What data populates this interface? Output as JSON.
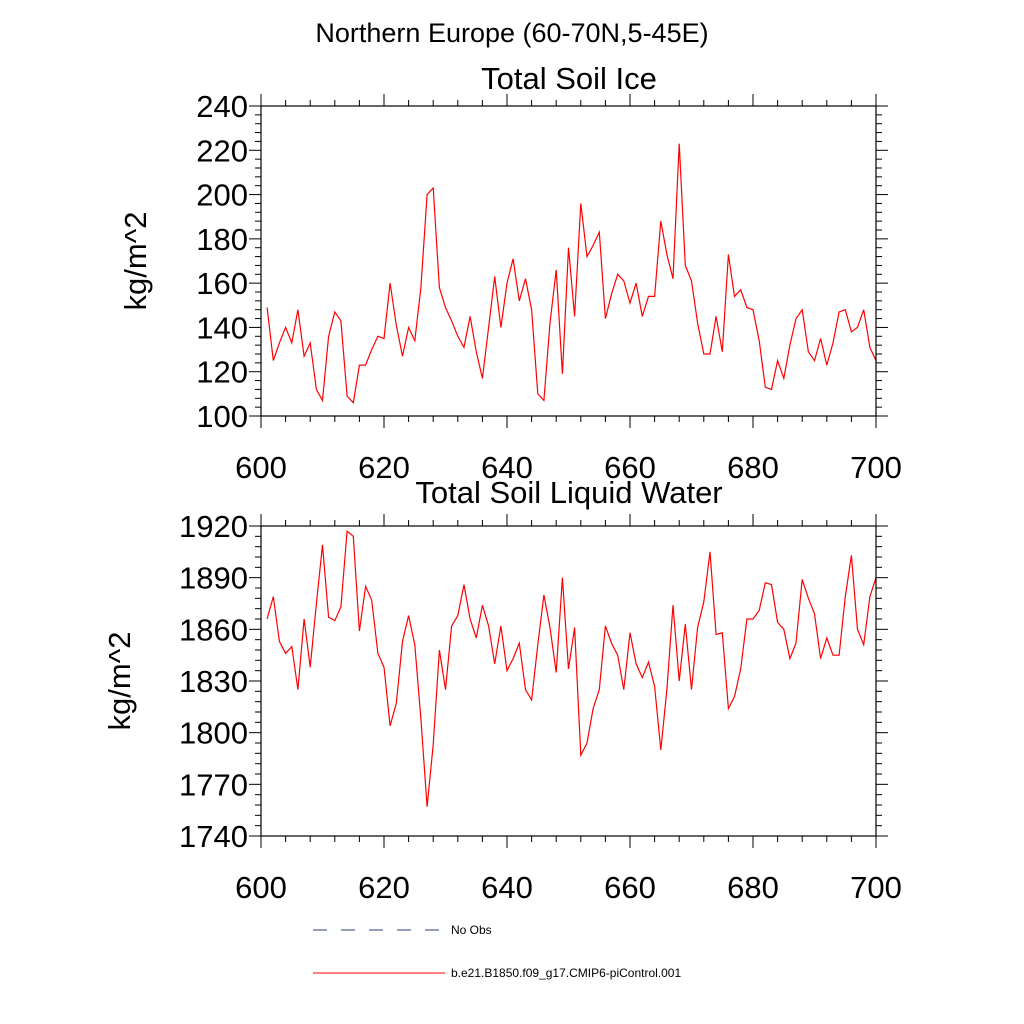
{
  "figure_title": "Northern Europe (60-70N,5-45E)",
  "chart_data": [
    {
      "type": "line",
      "title": "Total Soil Ice",
      "xlabel": "",
      "ylabel": "kg/m^2",
      "xlim": [
        600,
        700
      ],
      "ylim": [
        100,
        240
      ],
      "xticks": [
        600,
        620,
        640,
        660,
        680,
        700
      ],
      "xtick_labels": [
        "600",
        "620",
        "640",
        "660",
        "680",
        "700"
      ],
      "yticks": [
        100,
        120,
        140,
        160,
        180,
        200,
        220,
        240
      ],
      "ytick_labels": [
        "100",
        "120",
        "140",
        "160",
        "180",
        "200",
        "220",
        "240"
      ],
      "grid": false,
      "color": "#ff0000",
      "series": [
        {
          "name": "b.e21.B1850.f09_g17.CMIP6-piControl.001",
          "x_start": 601,
          "values": [
            149,
            125,
            133,
            140,
            133,
            148,
            127,
            133,
            112,
            107,
            136,
            147,
            143,
            109,
            106,
            123,
            123,
            130,
            136,
            135,
            160,
            141,
            127,
            140,
            134,
            158,
            200,
            203,
            158,
            149,
            143,
            136,
            131,
            145,
            129,
            117,
            140,
            163,
            140,
            160,
            171,
            152,
            162,
            148,
            110,
            107,
            142,
            166,
            119,
            176,
            145,
            196,
            172,
            177,
            183,
            144,
            155,
            164,
            161,
            151,
            160,
            145,
            154,
            154,
            188,
            173,
            162,
            223,
            168,
            161,
            142,
            128,
            128,
            145,
            129,
            173,
            154,
            157,
            149,
            148,
            134,
            113,
            112,
            125,
            117,
            132,
            144,
            148,
            129,
            125,
            135,
            123,
            133,
            147,
            148,
            138,
            140,
            148,
            131,
            125
          ]
        }
      ]
    },
    {
      "type": "line",
      "title": "Total Soil Liquid Water",
      "xlabel": "",
      "ylabel": "kg/m^2",
      "xlim": [
        600,
        700
      ],
      "ylim": [
        1740,
        1920
      ],
      "xticks": [
        600,
        620,
        640,
        660,
        680,
        700
      ],
      "xtick_labels": [
        "600",
        "620",
        "640",
        "660",
        "680",
        "700"
      ],
      "yticks": [
        1740,
        1770,
        1800,
        1830,
        1860,
        1890,
        1920
      ],
      "ytick_labels": [
        "1740",
        "1770",
        "1800",
        "1830",
        "1860",
        "1890",
        "1920"
      ],
      "grid": false,
      "color": "#ff0000",
      "series": [
        {
          "name": "b.e21.B1850.f09_g17.CMIP6-piControl.001",
          "x_start": 601,
          "values": [
            1866,
            1879,
            1853,
            1846,
            1850,
            1825,
            1866,
            1838,
            1875,
            1909,
            1867,
            1865,
            1873,
            1917,
            1914,
            1859,
            1885,
            1877,
            1846,
            1838,
            1804,
            1817,
            1853,
            1868,
            1851,
            1808,
            1757,
            1793,
            1848,
            1825,
            1862,
            1868,
            1886,
            1866,
            1855,
            1874,
            1862,
            1840,
            1862,
            1836,
            1843,
            1852,
            1825,
            1819,
            1851,
            1880,
            1861,
            1835,
            1890,
            1837,
            1861,
            1787,
            1794,
            1814,
            1825,
            1862,
            1852,
            1845,
            1825,
            1858,
            1840,
            1832,
            1841,
            1827,
            1790,
            1825,
            1874,
            1830,
            1863,
            1825,
            1861,
            1876,
            1905,
            1857,
            1858,
            1814,
            1821,
            1837,
            1866,
            1866,
            1871,
            1887,
            1886,
            1864,
            1860,
            1843,
            1852,
            1889,
            1878,
            1869,
            1843,
            1855,
            1845,
            1845,
            1879,
            1903,
            1860,
            1851,
            1879,
            1890
          ]
        }
      ]
    }
  ],
  "legend": {
    "placement": "bottom-center",
    "items": [
      {
        "label": "No Obs",
        "style": "dashed",
        "color": "#2b3f7a"
      },
      {
        "label": "b.e21.B1850.f09_g17.CMIP6-piControl.001",
        "style": "solid",
        "color": "#ff0000"
      }
    ]
  }
}
